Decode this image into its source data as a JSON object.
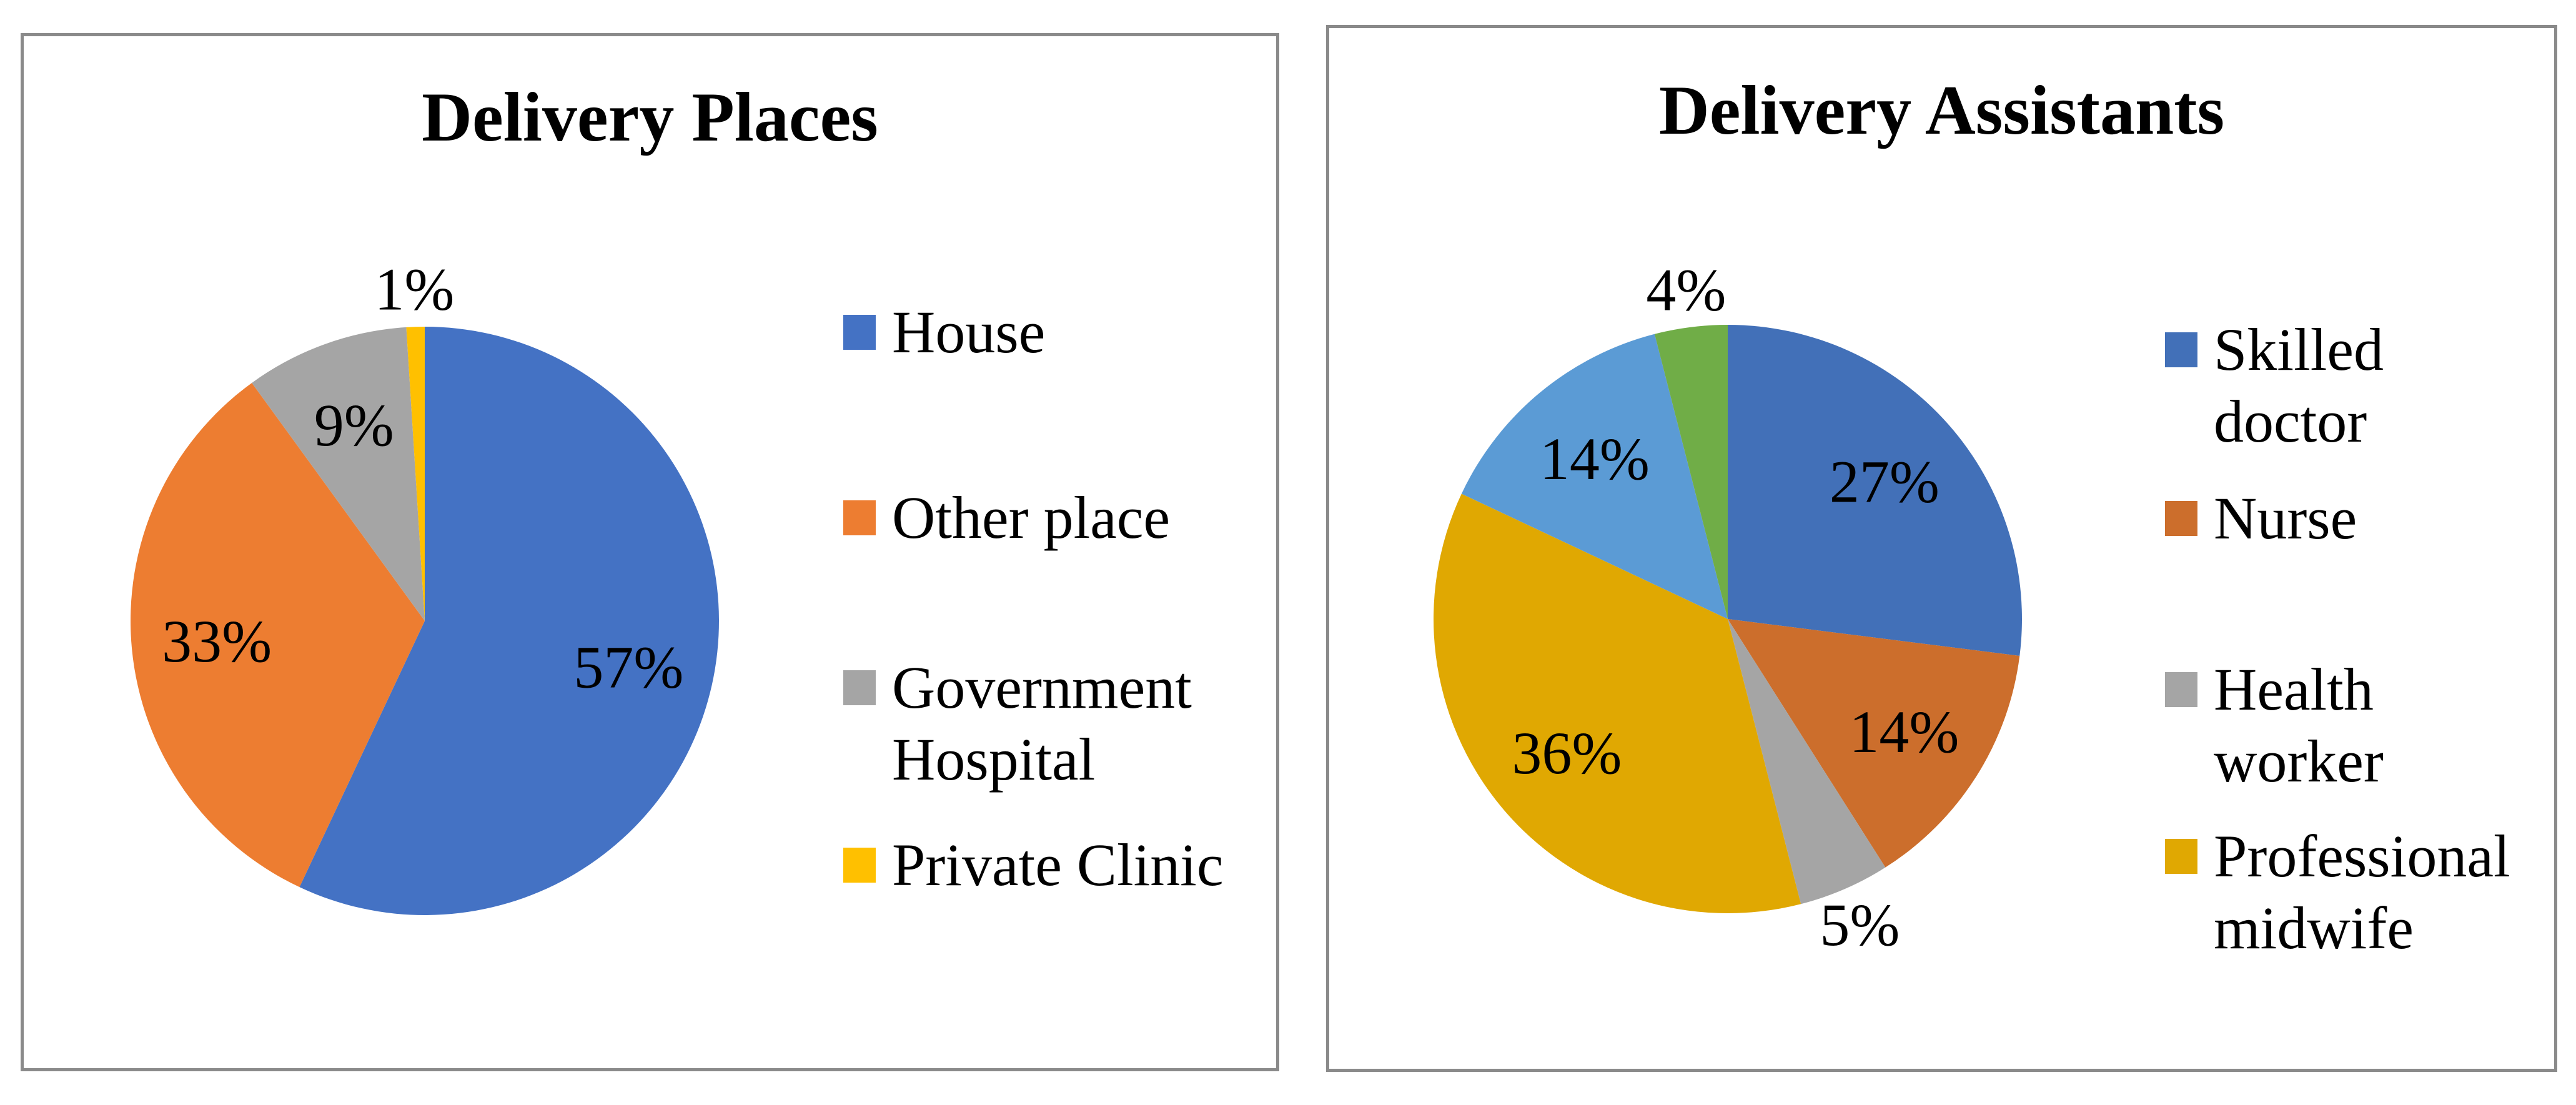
{
  "chart_data": [
    {
      "type": "pie",
      "title": "Delivery Places",
      "categories": [
        "House",
        "Other place",
        "Government Hospital",
        "Private Clinic"
      ],
      "values": [
        57,
        33,
        9,
        1
      ],
      "colors": [
        "#4472C4",
        "#ED7D31",
        "#A5A5A5",
        "#FFC000"
      ],
      "data_labels": [
        "57%",
        "33%",
        "9%",
        "1%"
      ],
      "label_format": "{value}%",
      "legend_position": "right",
      "legend": [
        {
          "label": "House",
          "color": "#4472C4"
        },
        {
          "label": "Other place",
          "color": "#ED7D31"
        },
        {
          "label": "Government Hospital",
          "color": "#A5A5A5"
        },
        {
          "label": "Private Clinic",
          "color": "#FFC000"
        }
      ]
    },
    {
      "type": "pie",
      "title": "Delivery Assistants",
      "categories": [
        "Skilled doctor",
        "Nurse",
        "Health worker",
        "Professional midwife",
        "",
        ""
      ],
      "values": [
        27,
        14,
        5,
        36,
        14,
        4
      ],
      "colors": [
        "#4270B8",
        "#CC6E2C",
        "#A5A5A5",
        "#E0A802",
        "#5B9BD5",
        "#70AD47"
      ],
      "data_labels": [
        "27%",
        "14%",
        "5%",
        "36%",
        "14%",
        "4%"
      ],
      "label_format": "{value}%",
      "legend_position": "right",
      "legend": [
        {
          "label": "Skilled doctor",
          "color": "#4270B8"
        },
        {
          "label": "Nurse",
          "color": "#CC6E2C"
        },
        {
          "label": "Health worker",
          "color": "#A5A5A5"
        },
        {
          "label": "Professional midwife",
          "color": "#E0A802"
        }
      ]
    }
  ]
}
